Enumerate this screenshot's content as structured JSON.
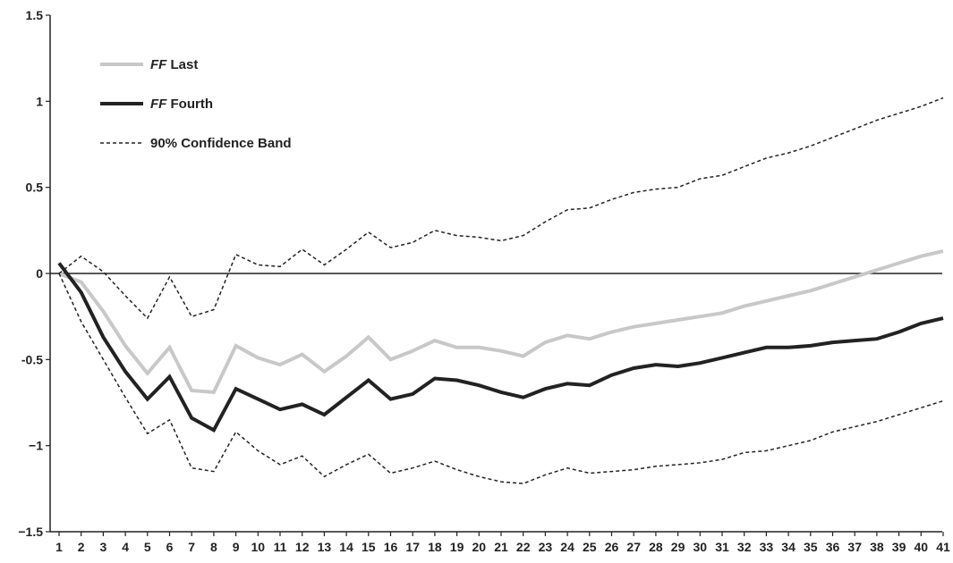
{
  "chart_data": {
    "type": "line",
    "title": "",
    "xlabel": "",
    "ylabel": "",
    "x": [
      1,
      2,
      3,
      4,
      5,
      6,
      7,
      8,
      9,
      10,
      11,
      12,
      13,
      14,
      15,
      16,
      17,
      18,
      19,
      20,
      21,
      22,
      23,
      24,
      25,
      26,
      27,
      28,
      29,
      30,
      31,
      32,
      33,
      34,
      35,
      36,
      37,
      38,
      39,
      40,
      41
    ],
    "ylim": [
      -1.5,
      1.5
    ],
    "yticks": [
      {
        "value": 1.5,
        "label": "1.5"
      },
      {
        "value": 1,
        "label": "1"
      },
      {
        "value": 0.5,
        "label": "0.5"
      },
      {
        "value": 0,
        "label": "0"
      },
      {
        "value": -0.5,
        "label": "-0.5"
      },
      {
        "value": -1,
        "label": "−1"
      },
      {
        "value": -1.5,
        "label": "−1.5"
      }
    ],
    "reference_line": 0,
    "grid": false,
    "legend_position": "top-left",
    "series": [
      {
        "name_prefix": "FF",
        "name_suffix": " Last",
        "style": "solid-thick",
        "color": "#c8c8c8",
        "values": [
          0.0,
          -0.05,
          -0.22,
          -0.42,
          -0.58,
          -0.43,
          -0.68,
          -0.69,
          -0.42,
          -0.49,
          -0.53,
          -0.47,
          -0.57,
          -0.48,
          -0.37,
          -0.5,
          -0.45,
          -0.39,
          -0.43,
          -0.43,
          -0.45,
          -0.48,
          -0.4,
          -0.36,
          -0.38,
          -0.34,
          -0.31,
          -0.29,
          -0.27,
          -0.25,
          -0.23,
          -0.19,
          -0.16,
          -0.13,
          -0.1,
          -0.06,
          -0.02,
          0.02,
          0.06,
          0.1,
          0.13
        ]
      },
      {
        "name_prefix": "FF",
        "name_suffix": " Fourth",
        "style": "solid-thick",
        "color": "#222222",
        "values": [
          0.06,
          -0.11,
          -0.37,
          -0.57,
          -0.73,
          -0.6,
          -0.84,
          -0.91,
          -0.67,
          -0.73,
          -0.79,
          -0.76,
          -0.82,
          -0.72,
          -0.62,
          -0.73,
          -0.7,
          -0.61,
          -0.62,
          -0.65,
          -0.69,
          -0.72,
          -0.67,
          -0.64,
          -0.65,
          -0.59,
          -0.55,
          -0.53,
          -0.54,
          -0.52,
          -0.49,
          -0.46,
          -0.43,
          -0.43,
          -0.42,
          -0.4,
          -0.39,
          -0.38,
          -0.34,
          -0.29,
          -0.26
        ]
      },
      {
        "name": "90% Confidence Band",
        "style": "dashed",
        "color": "#222222",
        "values": [
          0.0,
          0.1,
          0.01,
          -0.13,
          -0.26,
          -0.02,
          -0.25,
          -0.21,
          0.11,
          0.05,
          0.04,
          0.14,
          0.05,
          0.14,
          0.24,
          0.15,
          0.18,
          0.25,
          0.22,
          0.21,
          0.19,
          0.22,
          0.3,
          0.37,
          0.38,
          0.43,
          0.47,
          0.49,
          0.5,
          0.55,
          0.57,
          0.62,
          0.67,
          0.7,
          0.74,
          0.79,
          0.84,
          0.89,
          0.93,
          0.97,
          1.02
        ]
      },
      {
        "style": "dashed",
        "color": "#222222",
        "values": [
          0.0,
          -0.28,
          -0.5,
          -0.72,
          -0.93,
          -0.85,
          -1.13,
          -1.15,
          -0.92,
          -1.03,
          -1.11,
          -1.06,
          -1.18,
          -1.11,
          -1.05,
          -1.16,
          -1.13,
          -1.09,
          -1.14,
          -1.18,
          -1.21,
          -1.22,
          -1.17,
          -1.13,
          -1.16,
          -1.15,
          -1.14,
          -1.12,
          -1.11,
          -1.1,
          -1.08,
          -1.04,
          -1.03,
          -1.0,
          -0.97,
          -0.92,
          -0.89,
          -0.86,
          -0.82,
          -0.78,
          -0.74
        ]
      }
    ]
  }
}
